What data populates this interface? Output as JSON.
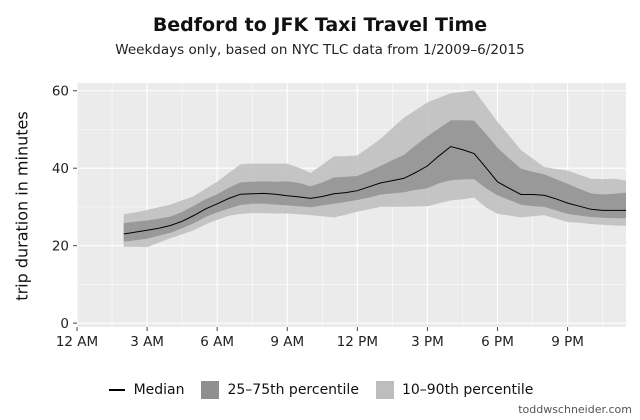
{
  "title": "Bedford to JFK Taxi Travel Time",
  "subtitle": "Weekdays only, based on NYC TLC data from 1/2009–6/2015",
  "credit": "toddwschneider.com",
  "legend": {
    "median": "Median",
    "iqr": "25–75th percentile",
    "p10_90": "10–90th percentile"
  },
  "colors": {
    "panel_background": "#ebebeb",
    "grid": "#ffffff",
    "band_10_90": "#bdbdbd",
    "band_25_75": "#8f8f8f",
    "median_line": "#000000"
  },
  "chart_data": {
    "type": "area",
    "title": "Bedford to JFK Taxi Travel Time",
    "subtitle": "Weekdays only, based on NYC TLC data from 1/2009–6/2015",
    "xlabel": "",
    "ylabel": "trip duration in minutes",
    "xlim": [
      0,
      23.5
    ],
    "ylim": [
      -1,
      62
    ],
    "x_ticks": [
      0,
      3,
      6,
      9,
      12,
      15,
      18,
      21
    ],
    "x_tick_labels": [
      "12 AM",
      "3 AM",
      "6 AM",
      "9 AM",
      "12 PM",
      "3 PM",
      "6 PM",
      "9 PM"
    ],
    "y_ticks": [
      0,
      20,
      40,
      60
    ],
    "y_tick_labels": [
      "0",
      "20",
      "40",
      "60"
    ],
    "grid": true,
    "legend_position": "bottom",
    "x": [
      2,
      2.5,
      3,
      3.5,
      4,
      4.5,
      5,
      5.5,
      6,
      6.5,
      7,
      7.5,
      8,
      8.5,
      9,
      9.5,
      10,
      10.5,
      11,
      11.5,
      12,
      12.5,
      13,
      13.5,
      14,
      14.5,
      15,
      15.5,
      16,
      16.5,
      17,
      17.5,
      18,
      18.5,
      19,
      19.5,
      20,
      20.5,
      21,
      21.5,
      22,
      22.5,
      23,
      23.5
    ],
    "series": [
      {
        "name": "Median",
        "kind": "line",
        "values": [
          23,
          23.5,
          24,
          24.5,
          25.2,
          26.3,
          27.8,
          29.5,
          30.8,
          32.2,
          33.3,
          33.4,
          33.5,
          33.3,
          32.9,
          32.6,
          32.2,
          32.7,
          33.4,
          33.7,
          34.2,
          35.2,
          36.2,
          36.8,
          37.4,
          38.9,
          40.6,
          43.2,
          45.6,
          44.8,
          43.8,
          40.2,
          36.5,
          34.8,
          33.2,
          33.2,
          33,
          32.1,
          31,
          30.2,
          29.4,
          29.1,
          29.1,
          29.1
        ]
      },
      {
        "name": "25–75th percentile",
        "kind": "band",
        "lower": [
          21,
          21.4,
          21.8,
          22.6,
          23.3,
          24.5,
          25.8,
          27.4,
          28.6,
          29.6,
          30.5,
          30.8,
          30.9,
          30.6,
          30.4,
          30.2,
          29.9,
          30.4,
          30.8,
          31.3,
          31.8,
          32.4,
          33.2,
          33.5,
          33.8,
          34.4,
          34.8,
          36.1,
          36.9,
          37.1,
          37.2,
          34.8,
          33,
          31.8,
          30.6,
          30.2,
          30,
          29.1,
          28.2,
          27.8,
          27.4,
          27.2,
          27.1,
          27.1
        ],
        "upper": [
          25.8,
          26.2,
          26.5,
          27,
          27.5,
          28.7,
          30.3,
          32,
          33.3,
          35,
          36.3,
          36.5,
          36.6,
          36.5,
          36.6,
          36.2,
          35.3,
          36.3,
          37.6,
          37.8,
          38,
          39.2,
          40.6,
          42.1,
          43.5,
          45.9,
          48.2,
          50.3,
          52.4,
          52.4,
          52.3,
          48.9,
          45.3,
          42.5,
          39.9,
          39.1,
          38.4,
          37.2,
          36,
          34.7,
          33.5,
          33.2,
          33.4,
          33.7
        ]
      },
      {
        "name": "10–90th percentile",
        "kind": "band",
        "lower": [
          19.7,
          19.7,
          19.6,
          20.8,
          21.9,
          22.9,
          24,
          25.5,
          26.7,
          27.7,
          28.2,
          28.4,
          28.4,
          28.3,
          28.3,
          28.1,
          27.9,
          27.6,
          27.3,
          28,
          28.8,
          29.4,
          30,
          30,
          30,
          30.1,
          30.2,
          31,
          31.7,
          32,
          32.4,
          29.9,
          28.2,
          27.8,
          27.3,
          27.6,
          27.9,
          27,
          26.1,
          25.9,
          25.6,
          25.4,
          25.2,
          25.1
        ],
        "upper": [
          28.1,
          28.6,
          29.2,
          29.9,
          30.6,
          31.7,
          32.8,
          34.7,
          36.5,
          38.8,
          41,
          41.2,
          41.2,
          41.2,
          41.2,
          40.1,
          38.8,
          40.9,
          43.1,
          43.1,
          43.3,
          45.4,
          47.6,
          50.4,
          53.1,
          55,
          57,
          58.2,
          59.4,
          59.7,
          60.1,
          56.1,
          52,
          48.4,
          44.7,
          42.5,
          40.3,
          39.8,
          39.4,
          38.3,
          37.3,
          37.2,
          37.3,
          36.8
        ]
      }
    ]
  }
}
